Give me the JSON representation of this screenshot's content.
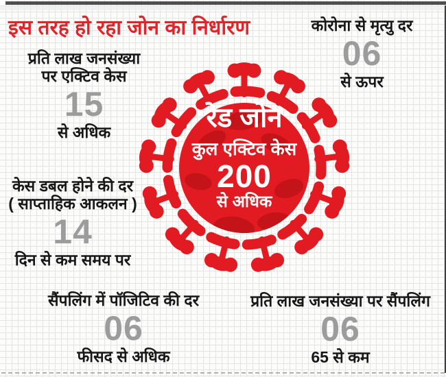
{
  "header": {
    "title": "इस तरह हो रहा जोन का निर्धारण"
  },
  "virus_badge": {
    "icon": "coronavirus-icon",
    "zone_name": "रेड जोन",
    "metric_label": "कुल एक्टिव केस",
    "value": "200",
    "qualifier": "से अधिक"
  },
  "criteria": {
    "active_cases_per_lakh": {
      "label_line1": "प्रति लाख जनसंख्या",
      "label_line2": "पर एक्टिव केस",
      "value": "15",
      "qualifier": "से अधिक"
    },
    "death_rate": {
      "label": "कोरोना से मृत्यु दर",
      "value": "06",
      "qualifier": "से ऊपर"
    },
    "doubling_rate": {
      "label_line1": "केस डबल होने की दर",
      "label_line2": "( साप्ताहिक आकलन )",
      "value": "14",
      "qualifier": "दिन से कम समय पर"
    },
    "positivity_rate": {
      "label": "सैंपलिंग में पॉजिटिव की दर",
      "value": "06",
      "qualifier": "फीसद से अधिक"
    },
    "sampling_per_lakh": {
      "label": "प्रति लाख जनसंख्या पर सैंपलिंग",
      "value": "06",
      "qualifier": "65 से कम"
    }
  },
  "colors": {
    "virus_red": "#e11b21",
    "virus_dark_blob": "#c4141a",
    "title_red": "#e3232a",
    "value_gray": "#9c9c9c",
    "text_black": "#171717"
  }
}
